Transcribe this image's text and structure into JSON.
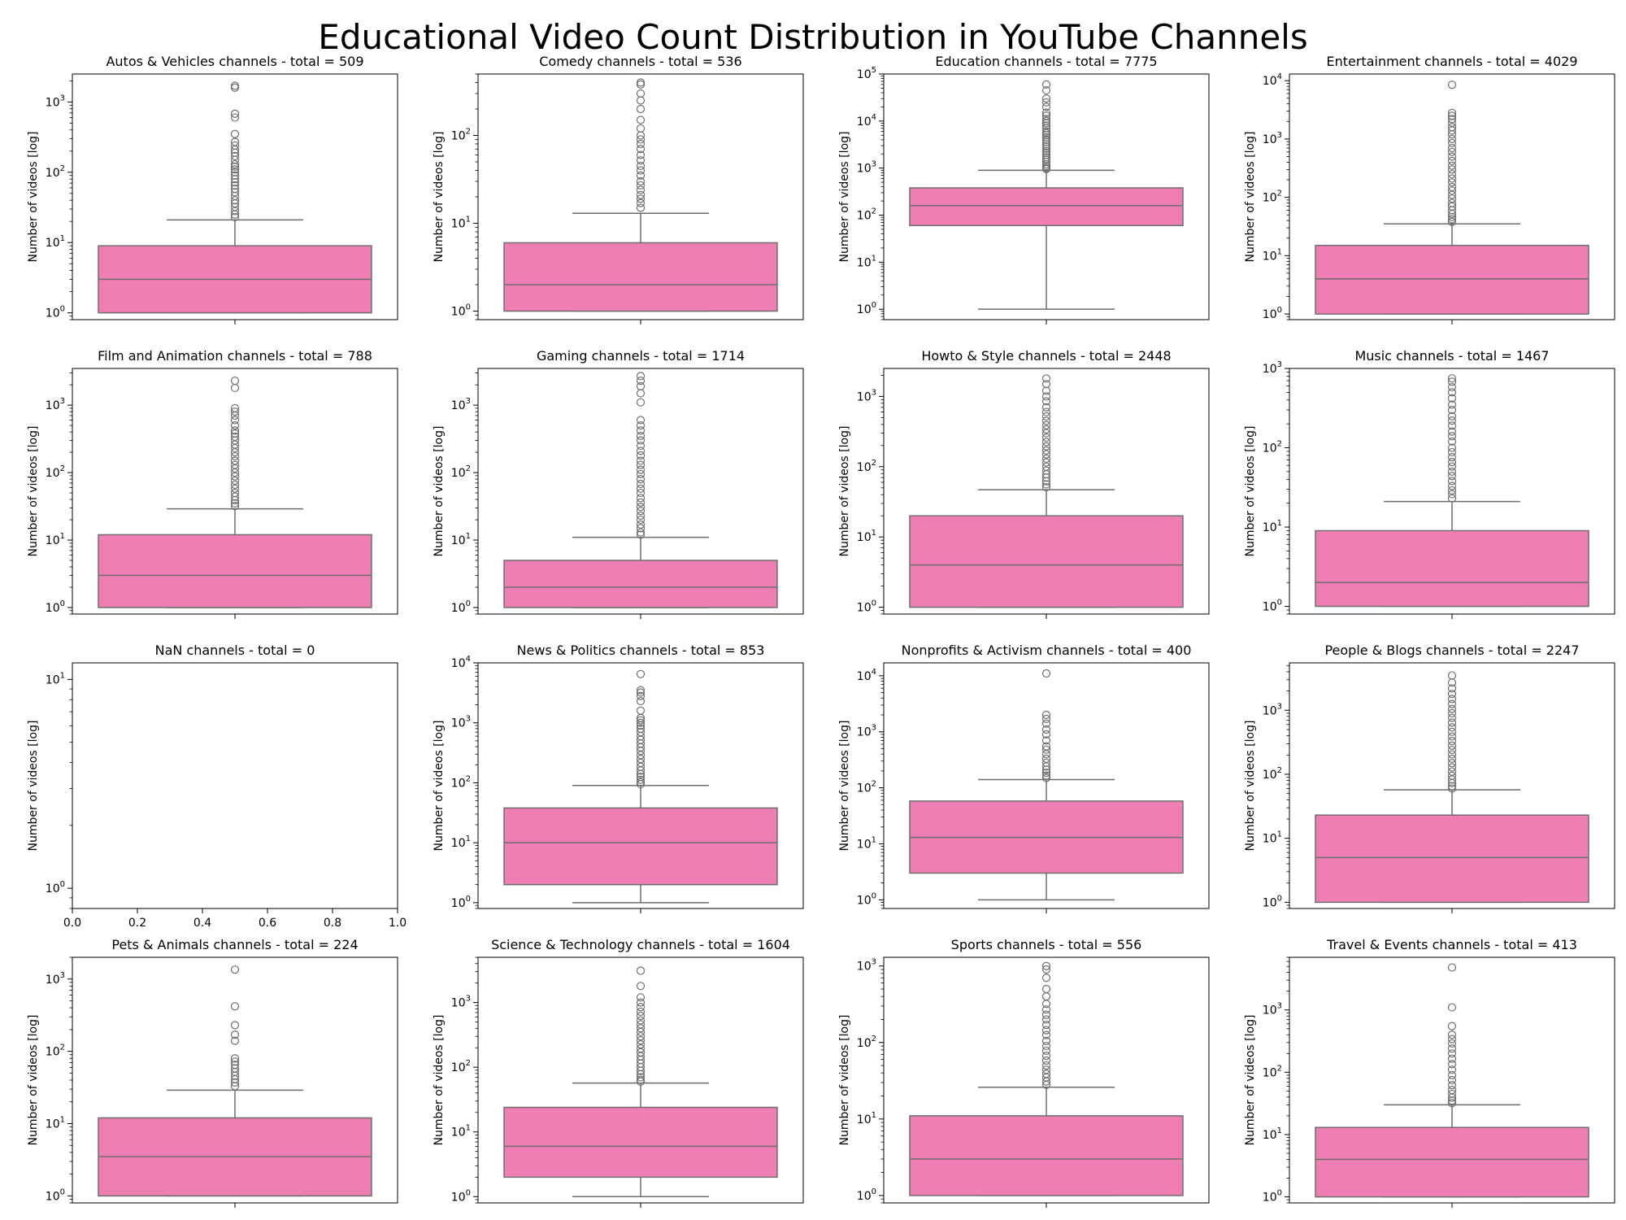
{
  "suptitle": "Educational Video Count Distribution in YouTube Channels",
  "colors": {
    "box_fill": "#ee7eb3",
    "line": "#6e6e6e",
    "axis": "#000000",
    "background": "#ffffff"
  },
  "chart_data": [
    {
      "type": "box",
      "title": "Autos & Vehicles channels - total = 509",
      "ylabel": "Number of videos [log]",
      "yscale": "log",
      "ylim": [
        0.8,
        2500
      ],
      "box": {
        "whislo": 1,
        "q1": 1,
        "med": 3,
        "q3": 9,
        "whishi": 21
      },
      "fliers": [
        1700,
        1600,
        680,
        600,
        350,
        270,
        240,
        210,
        190,
        170,
        150,
        130,
        120,
        110,
        100,
        90,
        80,
        72,
        65,
        58,
        52,
        46,
        40,
        36,
        32,
        28,
        25,
        23
      ]
    },
    {
      "type": "box",
      "title": "Comedy channels - total = 536",
      "ylabel": "Number of videos [log]",
      "yscale": "log",
      "ylim": [
        0.8,
        500
      ],
      "box": {
        "whislo": 1,
        "q1": 1,
        "med": 2,
        "q3": 6,
        "whishi": 13
      },
      "fliers": [
        400,
        380,
        300,
        250,
        200,
        150,
        120,
        100,
        90,
        80,
        70,
        60,
        52,
        45,
        40,
        35,
        30,
        27,
        24,
        21,
        19,
        17,
        15
      ]
    },
    {
      "type": "box",
      "title": "Education channels - total = 7775",
      "ylabel": "Number of videos [log]",
      "yscale": "log",
      "ylim": [
        0.6,
        100000
      ],
      "box": {
        "whislo": 1,
        "q1": 60,
        "med": 160,
        "q3": 380,
        "whishi": 900
      },
      "fliers": [
        60000,
        45000,
        30000,
        25000,
        20000,
        15000,
        13000,
        11000,
        10000,
        9000,
        8000,
        7000,
        6000,
        5500,
        5000,
        4500,
        4000,
        3600,
        3200,
        2900,
        2600,
        2300,
        2100,
        1900,
        1700,
        1500,
        1350,
        1200,
        1100,
        1000,
        950
      ]
    },
    {
      "type": "box",
      "title": "Entertainment channels - total = 4029",
      "ylabel": "Number of videos [log]",
      "yscale": "log",
      "ylim": [
        0.8,
        13000
      ],
      "box": {
        "whislo": 1,
        "q1": 1,
        "med": 4,
        "q3": 15,
        "whishi": 35
      },
      "fliers": [
        8500,
        2800,
        2500,
        2200,
        1900,
        1600,
        1400,
        1200,
        1000,
        850,
        700,
        600,
        500,
        420,
        350,
        300,
        250,
        210,
        180,
        150,
        130,
        110,
        95,
        80,
        70,
        60,
        52,
        46,
        42,
        38
      ]
    },
    {
      "type": "box",
      "title": "Film and Animation channels - total = 788",
      "ylabel": "Number of videos [log]",
      "yscale": "log",
      "ylim": [
        0.8,
        3500
      ],
      "box": {
        "whislo": 1,
        "q1": 1,
        "med": 3,
        "q3": 12,
        "whishi": 29
      },
      "fliers": [
        2300,
        1800,
        900,
        800,
        700,
        600,
        500,
        420,
        380,
        340,
        300,
        260,
        230,
        200,
        175,
        150,
        130,
        115,
        100,
        88,
        76,
        66,
        58,
        50,
        44,
        39,
        35,
        32
      ]
    },
    {
      "type": "box",
      "title": "Gaming channels - total = 1714",
      "ylabel": "Number of videos [log]",
      "yscale": "log",
      "ylim": [
        0.8,
        3500
      ],
      "box": {
        "whislo": 1,
        "q1": 1,
        "med": 2,
        "q3": 5,
        "whishi": 11
      },
      "fliers": [
        2700,
        2300,
        1900,
        1500,
        1100,
        600,
        500,
        420,
        350,
        300,
        250,
        210,
        180,
        150,
        130,
        110,
        95,
        80,
        68,
        58,
        50,
        42,
        36,
        31,
        27,
        23,
        20,
        17,
        15,
        13,
        12
      ]
    },
    {
      "type": "box",
      "title": "Howto & Style channels - total = 2448",
      "ylabel": "Number of videos [log]",
      "yscale": "log",
      "ylim": [
        0.8,
        2500
      ],
      "box": {
        "whislo": 1,
        "q1": 1,
        "med": 4,
        "q3": 20,
        "whishi": 47
      },
      "fliers": [
        1800,
        1500,
        1200,
        1000,
        850,
        700,
        600,
        520,
        450,
        390,
        340,
        300,
        260,
        225,
        195,
        170,
        150,
        130,
        115,
        100,
        88,
        78,
        70,
        62,
        56,
        51
      ]
    },
    {
      "type": "box",
      "title": "Music channels - total = 1467",
      "ylabel": "Number of videos [log]",
      "yscale": "log",
      "ylim": [
        0.8,
        1000
      ],
      "box": {
        "whislo": 1,
        "q1": 1,
        "med": 2,
        "q3": 9,
        "whishi": 21
      },
      "fliers": [
        750,
        680,
        580,
        500,
        420,
        350,
        300,
        250,
        220,
        190,
        160,
        140,
        120,
        100,
        88,
        76,
        66,
        58,
        50,
        44,
        38,
        33,
        29,
        26,
        23
      ]
    },
    {
      "type": "empty",
      "title": "NaN channels - total = 0",
      "ylabel": "Number of videos [log]",
      "yscale": "log",
      "ylim": [
        0.8,
        12
      ],
      "xlim": [
        0,
        1
      ],
      "xticks": [
        "0.0",
        "0.2",
        "0.4",
        "0.6",
        "0.8",
        "1.0"
      ]
    },
    {
      "type": "box",
      "title": "News & Politics channels - total = 853",
      "ylabel": "Number of videos [log]",
      "yscale": "log",
      "ylim": [
        0.8,
        10000
      ],
      "box": {
        "whislo": 1,
        "q1": 2,
        "med": 10,
        "q3": 38,
        "whishi": 90
      },
      "fliers": [
        6500,
        3500,
        3200,
        2800,
        2300,
        1600,
        1200,
        1100,
        1000,
        900,
        800,
        700,
        600,
        520,
        450,
        390,
        340,
        290,
        250,
        215,
        185,
        160,
        140,
        125,
        112,
        102,
        95
      ]
    },
    {
      "type": "box",
      "title": "Nonprofits & Activism channels - total = 400",
      "ylabel": "Number of videos [log]",
      "yscale": "log",
      "ylim": [
        0.7,
        17000
      ],
      "box": {
        "whislo": 1,
        "q1": 3,
        "med": 13,
        "q3": 58,
        "whishi": 140
      },
      "fliers": [
        11000,
        2000,
        1700,
        1400,
        1100,
        900,
        700,
        550,
        480,
        400,
        330,
        280,
        240,
        210,
        185,
        165,
        150
      ]
    },
    {
      "type": "box",
      "title": "People & Blogs channels - total = 2247",
      "ylabel": "Number of videos [log]",
      "yscale": "log",
      "ylim": [
        0.8,
        5500
      ],
      "box": {
        "whislo": 1,
        "q1": 1,
        "med": 5,
        "q3": 23,
        "whishi": 57
      },
      "fliers": [
        3500,
        2700,
        2200,
        1800,
        1500,
        1250,
        1050,
        900,
        760,
        640,
        540,
        460,
        390,
        330,
        280,
        240,
        205,
        175,
        150,
        128,
        110,
        95,
        83,
        73,
        65,
        60
      ]
    },
    {
      "type": "box",
      "title": "Pets & Animals channels - total = 224",
      "ylabel": "Number of videos [log]",
      "yscale": "log",
      "ylim": [
        0.8,
        2000
      ],
      "box": {
        "whislo": 1,
        "q1": 1,
        "med": 3.5,
        "q3": 12,
        "whishi": 29
      },
      "fliers": [
        1350,
        420,
        230,
        170,
        140,
        80,
        72,
        65,
        58,
        52,
        46,
        41,
        37,
        33
      ]
    },
    {
      "type": "box",
      "title": "Science & Technology channels - total = 1604",
      "ylabel": "Number of videos [log]",
      "yscale": "log",
      "ylim": [
        0.8,
        5000
      ],
      "box": {
        "whislo": 1,
        "q1": 2,
        "med": 6,
        "q3": 24,
        "whishi": 57
      },
      "fliers": [
        3100,
        1800,
        1200,
        1000,
        850,
        720,
        620,
        530,
        460,
        400,
        350,
        300,
        260,
        225,
        195,
        170,
        148,
        130,
        114,
        100,
        88,
        78,
        70,
        64,
        60
      ]
    },
    {
      "type": "box",
      "title": "Sports channels - total = 556",
      "ylabel": "Number of videos [log]",
      "yscale": "log",
      "ylim": [
        0.8,
        1300
      ],
      "box": {
        "whislo": 1,
        "q1": 1,
        "med": 3,
        "q3": 11,
        "whishi": 26
      },
      "fliers": [
        1000,
        900,
        700,
        500,
        400,
        320,
        270,
        230,
        200,
        170,
        145,
        125,
        105,
        90,
        78,
        67,
        58,
        50,
        44,
        39,
        35,
        31,
        28
      ]
    },
    {
      "type": "box",
      "title": "Travel & Events channels - total = 413",
      "ylabel": "Number of videos [log]",
      "yscale": "log",
      "ylim": [
        0.8,
        7000
      ],
      "box": {
        "whislo": 1,
        "q1": 1,
        "med": 4,
        "q3": 13,
        "whishi": 30
      },
      "fliers": [
        4800,
        1100,
        550,
        400,
        340,
        290,
        240,
        200,
        165,
        135,
        110,
        90,
        75,
        62,
        52,
        45,
        39,
        35,
        32
      ]
    }
  ]
}
